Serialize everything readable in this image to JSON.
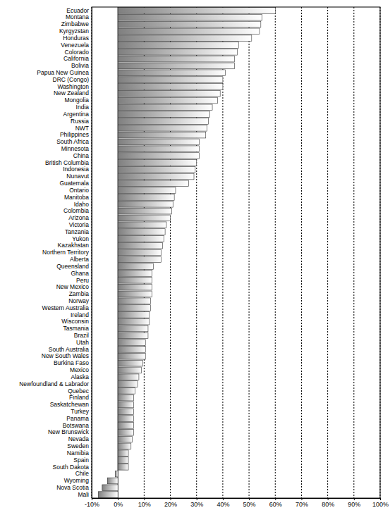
{
  "chart_data": {
    "type": "bar",
    "orientation": "horizontal",
    "categories": [
      "Ecuador",
      "Montana",
      "Zimbabwe",
      "Kyrgyzstan",
      "Honduras",
      "Venezuela",
      "Colorado",
      "California",
      "Bolivia",
      "Papua New Guinea",
      "DRC (Congo)",
      "Washington",
      "New Zealand",
      "Mongolia",
      "India",
      "Argentina",
      "Russia",
      "NWT",
      "Philippines",
      "South Africa",
      "Minnesota",
      "China",
      "British Columbia",
      "Indonesia",
      "Nunavut",
      "Guatemala",
      "Ontario",
      "Manitoba",
      "Idaho",
      "Colombia",
      "Arizona",
      "Victoria",
      "Tanzania",
      "Yukon",
      "Kazakhstan",
      "Northern Territory",
      "Alberta",
      "Queensland",
      "Ghana",
      "Peru",
      "New Mexico",
      "Zambia",
      "Norway",
      "Western Australia",
      "Ireland",
      "Wisconsin",
      "Tasmania",
      "Brazil",
      "Utah",
      "South Australia",
      "New South Wales",
      "Burkina Faso",
      "Mexico",
      "Alaska",
      "Newfoundland & Labrador",
      "Quebec",
      "Finland",
      "Saskatchewan",
      "Turkey",
      "Panama",
      "Botswana",
      "New Brunswick",
      "Nevada",
      "Sweden",
      "Namibia",
      "Spain",
      "South Dakota",
      "Chile",
      "Wyoming",
      "Nova Scotia",
      "Mali"
    ],
    "values": [
      60,
      55,
      54.5,
      54,
      51,
      46,
      45.5,
      44.5,
      44.5,
      41,
      40,
      40,
      39,
      38,
      36,
      35,
      34.5,
      34,
      33.5,
      31,
      31,
      31,
      30,
      29.5,
      29,
      27,
      22,
      21.5,
      21,
      20.5,
      20,
      18.5,
      18,
      17.5,
      17,
      16.5,
      16.5,
      13.5,
      13,
      13,
      13,
      13,
      12.5,
      12.5,
      12,
      12,
      11.5,
      11.5,
      10.5,
      10.5,
      10.5,
      9.5,
      9,
      8,
      7.5,
      6.5,
      6,
      6,
      6,
      6,
      6,
      6,
      5.5,
      5,
      4,
      4,
      4,
      -1,
      -4,
      -6,
      -7.5
    ],
    "color": "#7f7f7f",
    "xlim": [
      -10,
      100
    ],
    "xticks": [
      {
        "value": -10,
        "label": "-10%"
      },
      {
        "value": 0,
        "label": "0%"
      },
      {
        "value": 10,
        "label": "10%"
      },
      {
        "value": 20,
        "label": "20%"
      },
      {
        "value": 30,
        "label": "30%"
      },
      {
        "value": 40,
        "label": "40%"
      },
      {
        "value": 50,
        "label": "50%"
      },
      {
        "value": 60,
        "label": "60%"
      },
      {
        "value": 70,
        "label": "70%"
      },
      {
        "value": 80,
        "label": "80%"
      },
      {
        "value": 90,
        "label": "90%"
      },
      {
        "value": 100,
        "label": "100%"
      }
    ],
    "grid": true
  }
}
